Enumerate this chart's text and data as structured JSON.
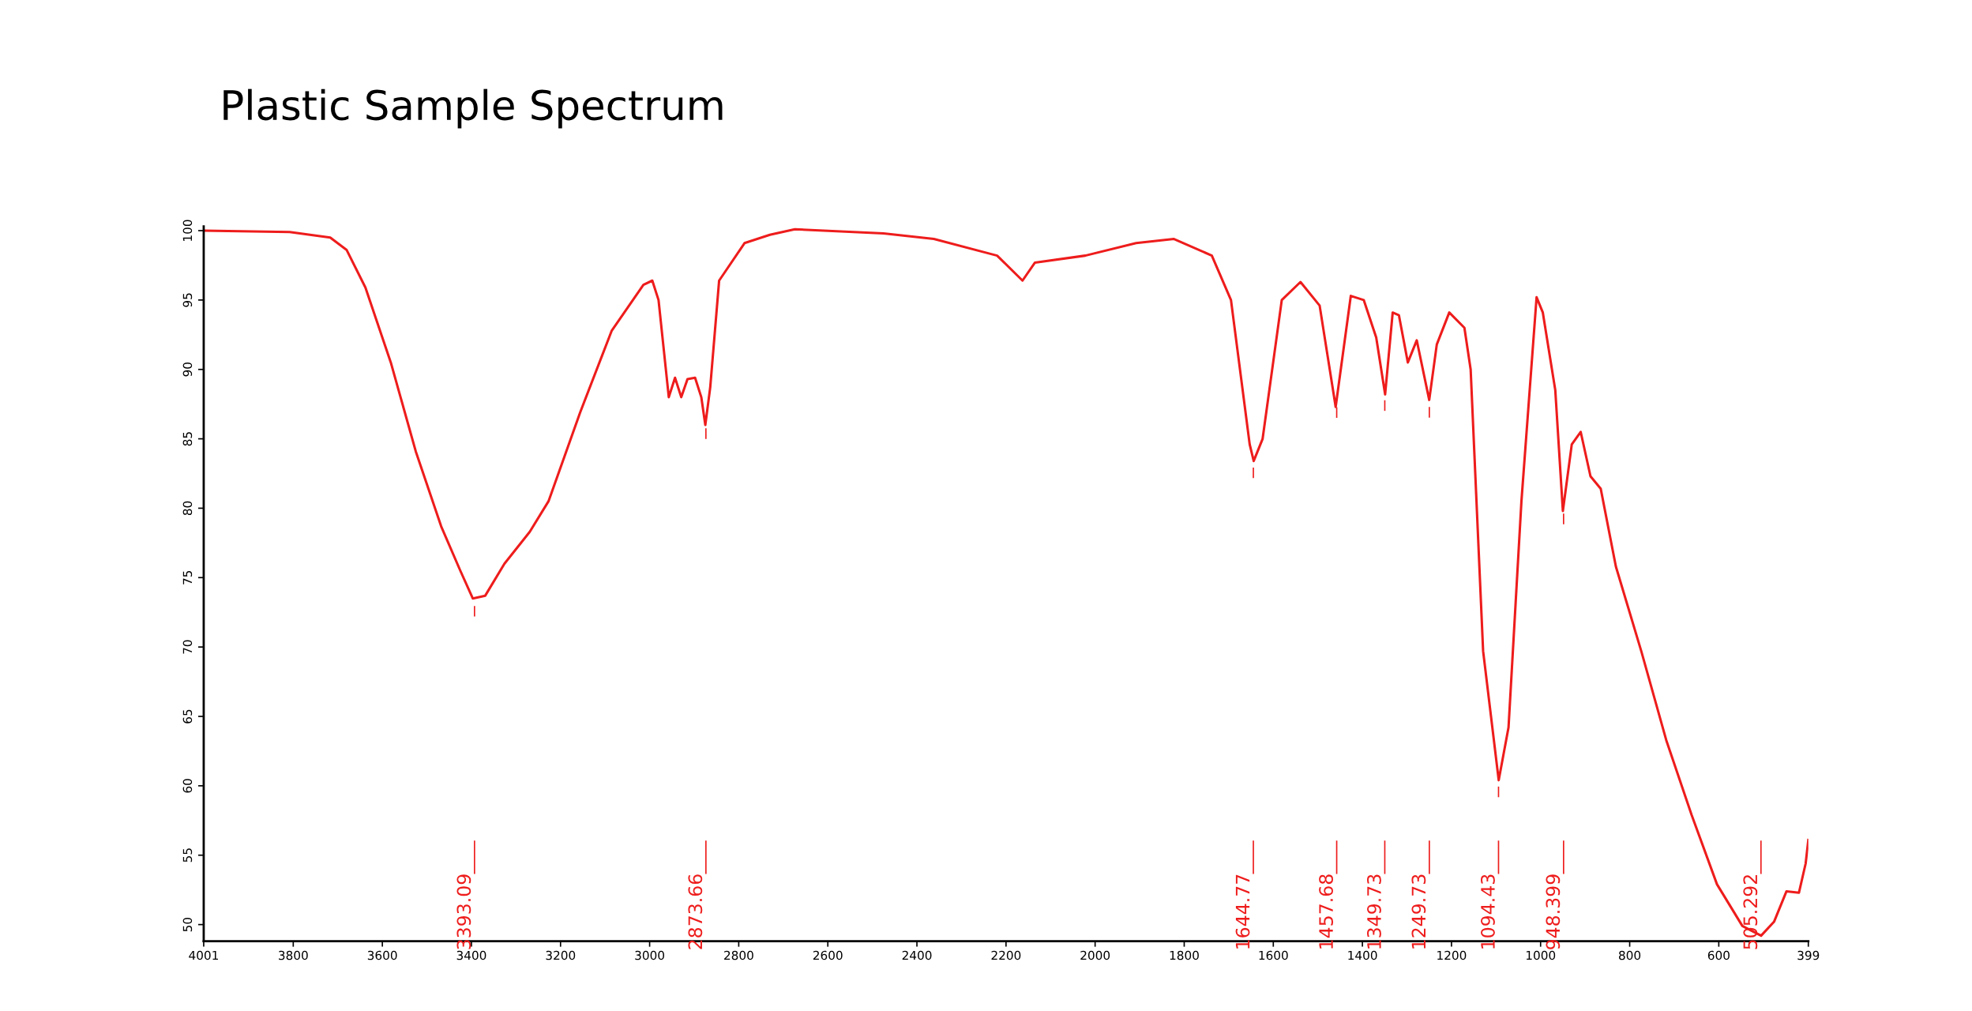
{
  "chart_data": {
    "type": "line",
    "title": "Plastic Sample Spectrum",
    "x": [
      4001,
      3808,
      3717,
      3680,
      3638,
      3581,
      3525,
      3468,
      3425,
      3397,
      3369,
      3326,
      3269,
      3227,
      3156,
      3085,
      3014,
      2994,
      2980,
      2957,
      2943,
      2929,
      2915,
      2898,
      2884,
      2875,
      2864,
      2844,
      2787,
      2730,
      2674,
      2475,
      2362,
      2220,
      2163,
      2135,
      2022,
      1908,
      1823,
      1738,
      1695,
      1653,
      1644,
      1624,
      1581,
      1539,
      1496,
      1460,
      1426,
      1397,
      1369,
      1349,
      1332,
      1318,
      1298,
      1278,
      1250,
      1233,
      1205,
      1171,
      1157,
      1129,
      1094,
      1072,
      1043,
      1009,
      995,
      967,
      950,
      930,
      910,
      888,
      865,
      831,
      774,
      718,
      661,
      604,
      547,
      505,
      476,
      448,
      420,
      405,
      399
    ],
    "series": [
      {
        "color": "#ee1c1c",
        "values": [
          100,
          99.9,
          99.5,
          98.6,
          95.9,
          90.5,
          84.1,
          78.7,
          75.5,
          73.5,
          73.7,
          76,
          78.3,
          80.5,
          86.9,
          92.8,
          96.1,
          96.4,
          95,
          88,
          89.4,
          88,
          89.3,
          89.4,
          88,
          86,
          88.7,
          96.4,
          99.1,
          99.7,
          100.1,
          99.8,
          99.4,
          98.2,
          96.4,
          97.7,
          98.2,
          99.1,
          99.4,
          98.2,
          95,
          84.6,
          83.4,
          85,
          95,
          96.3,
          94.6,
          87.3,
          95.3,
          95,
          92.3,
          88.2,
          94.1,
          93.9,
          90.5,
          92.1,
          87.8,
          91.8,
          94.1,
          93,
          90,
          69.7,
          60.4,
          64.2,
          80.5,
          95.2,
          94.1,
          88.5,
          79.8,
          84.6,
          85.5,
          82.3,
          81.4,
          75.8,
          69.7,
          63.3,
          57.9,
          52.9,
          49.9,
          49.2,
          50.2,
          52.4,
          52.3,
          54.4,
          56.1
        ]
      }
    ],
    "xlim": [
      4001,
      399
    ],
    "ylim": [
      48.8,
      100.3
    ],
    "xticks": [
      4001,
      3800,
      3600,
      3400,
      3200,
      3000,
      2800,
      2600,
      2400,
      2200,
      2000,
      1800,
      1600,
      1400,
      1200,
      1000,
      800,
      600,
      399
    ],
    "yticks": [
      50,
      55,
      60,
      65,
      70,
      75,
      80,
      85,
      90,
      95,
      100
    ],
    "grid": false,
    "legend": false,
    "marker": "none",
    "line_style": "solid",
    "ref_lines": [
      {
        "axis": "x",
        "value": 3393.09,
        "label": "3393.09",
        "color": "#ee1c1c"
      },
      {
        "axis": "x",
        "value": 2873.66,
        "label": "2873.66",
        "color": "#ee1c1c"
      },
      {
        "axis": "x",
        "value": 1644.77,
        "label": "1644.77",
        "color": "#ee1c1c"
      },
      {
        "axis": "x",
        "value": 1457.68,
        "label": "1457.68",
        "color": "#ee1c1c"
      },
      {
        "axis": "x",
        "value": 1349.73,
        "label": "1349.73",
        "color": "#ee1c1c"
      },
      {
        "axis": "x",
        "value": 1249.73,
        "label": "1249.73",
        "color": "#ee1c1c"
      },
      {
        "axis": "x",
        "value": 1094.43,
        "label": "1094.43",
        "color": "#ee1c1c"
      },
      {
        "axis": "x",
        "value": 948.399,
        "label": "948.399",
        "color": "#ee1c1c"
      },
      {
        "axis": "x",
        "value": 505.292,
        "label": "505.292",
        "color": "#ee1c1c"
      }
    ]
  }
}
